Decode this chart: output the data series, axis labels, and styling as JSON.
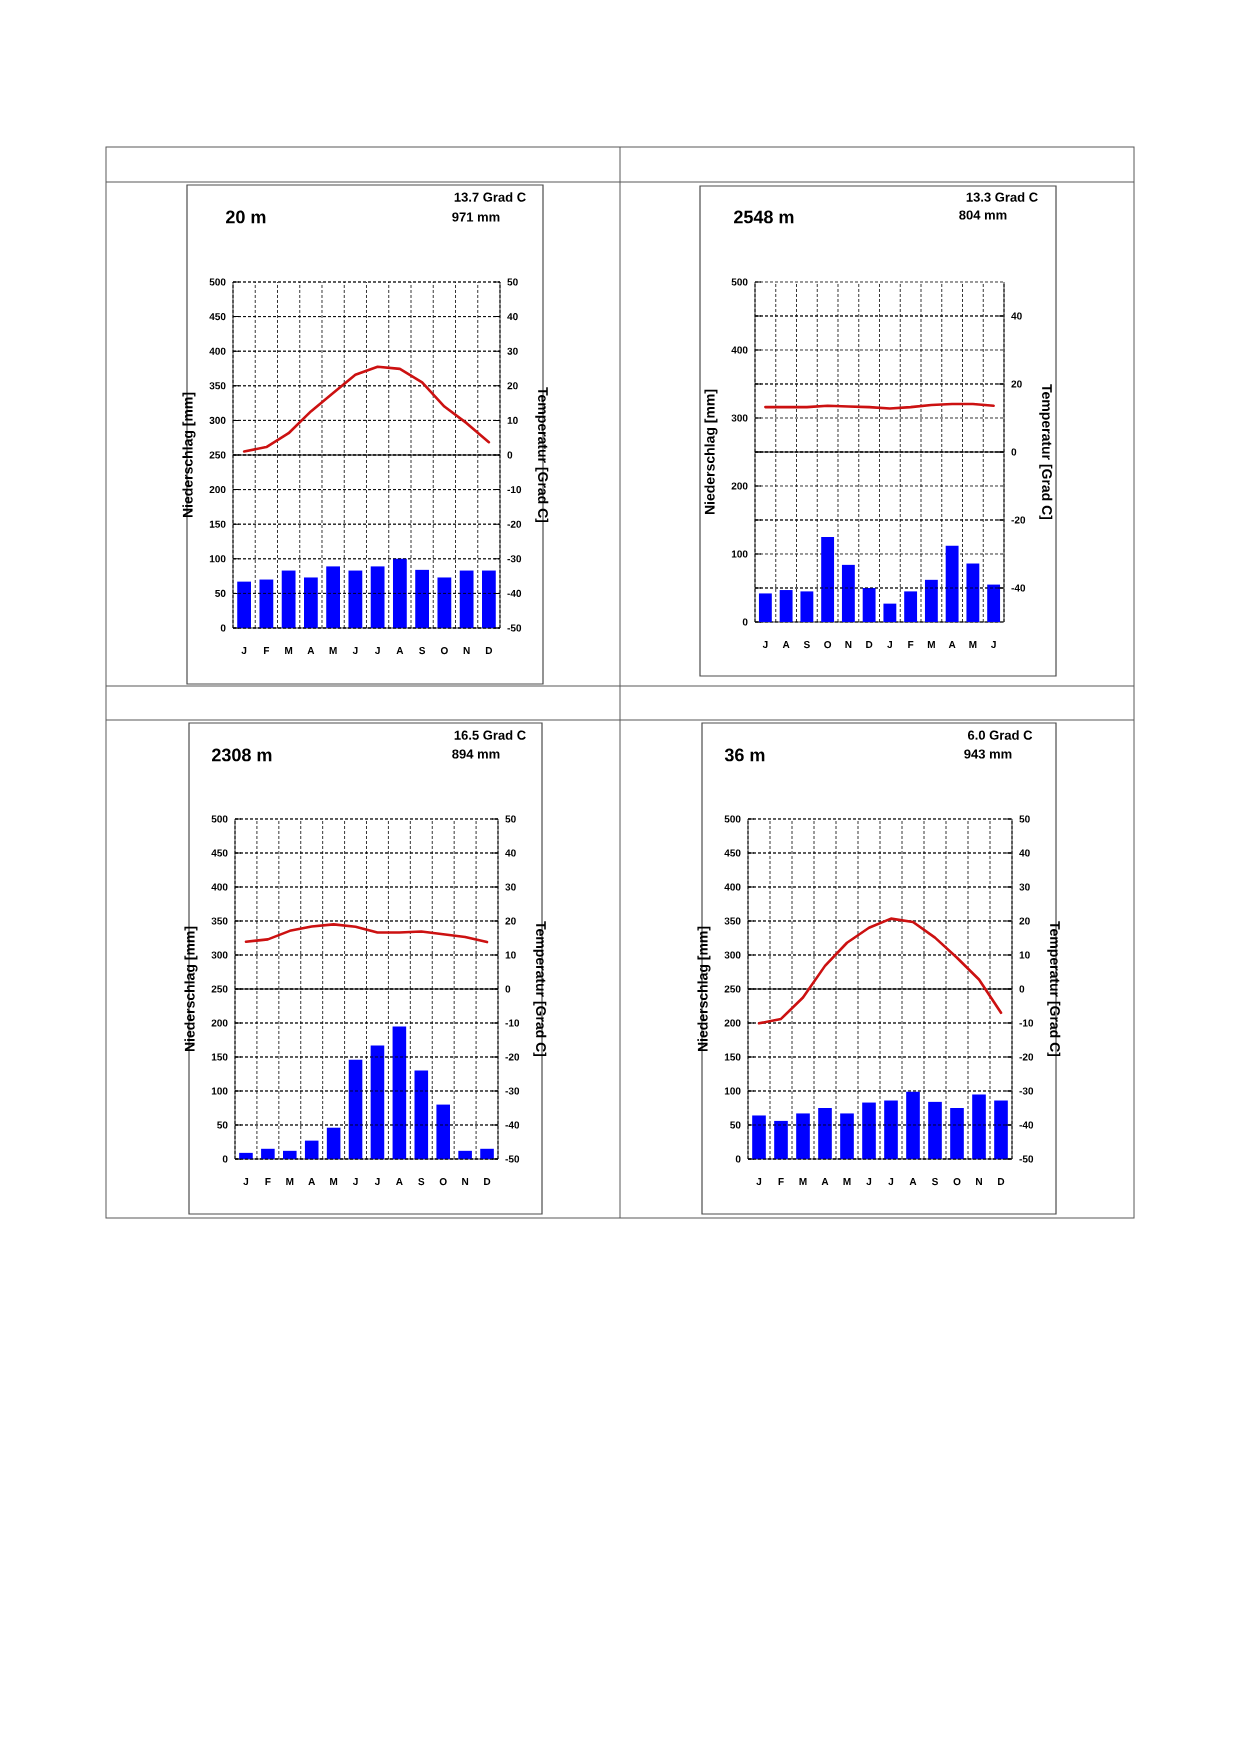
{
  "chart_data": [
    {
      "type": "bar",
      "title": "20 m",
      "annotations": [
        "13.7 Grad C",
        "971 mm"
      ],
      "ylabel": "Niederschlag [mm]",
      "y2label": "Temperatur [Grad C]",
      "categories": [
        "J",
        "F",
        "M",
        "A",
        "M",
        "J",
        "J",
        "A",
        "S",
        "O",
        "N",
        "D"
      ],
      "series": [
        {
          "color": "#0000ff",
          "values": [
            67,
            70,
            83,
            73,
            89,
            83,
            89,
            100,
            84,
            73,
            83,
            83
          ]
        },
        {
          "type": "line",
          "axis": "y2",
          "color": "#cc1111",
          "values": [
            1,
            2.3,
            6.3,
            12.6,
            17.9,
            23.2,
            25.5,
            24.9,
            21,
            14,
            9.2,
            3.7
          ]
        }
      ],
      "ylim": [
        0,
        500
      ],
      "yticks": [
        0,
        50,
        100,
        150,
        200,
        250,
        300,
        350,
        400,
        450,
        500
      ],
      "y2lim": [
        -50,
        50
      ],
      "y2ticks": [
        -50,
        -40,
        -30,
        -20,
        -10,
        0,
        10,
        20,
        30,
        40,
        50
      ],
      "grid": true,
      "ref_lines": [
        {
          "axis": "y2",
          "value": 0
        }
      ]
    },
    {
      "type": "bar",
      "title": "2548 m",
      "annotations": [
        "13.3 Grad C",
        "804 mm"
      ],
      "ylabel": "Niederschlag [mm]",
      "y2label": "Temperatur [Grad C]",
      "categories": [
        "J",
        "A",
        "S",
        "O",
        "N",
        "D",
        "J",
        "F",
        "M",
        "A",
        "M",
        "J"
      ],
      "series": [
        {
          "color": "#0000ff",
          "values": [
            42,
            47,
            45,
            125,
            84,
            50,
            27,
            45,
            62,
            112,
            86,
            55
          ]
        },
        {
          "type": "line",
          "axis": "y2",
          "color": "#cc1111",
          "values": [
            13.2,
            13.2,
            13.2,
            13.6,
            13.4,
            13.2,
            12.8,
            13.2,
            13.8,
            14.1,
            14.1,
            13.6
          ]
        }
      ],
      "ylim": [
        0,
        500
      ],
      "yticks": [
        0,
        {
          "value": 50,
          "label": null
        },
        100,
        {
          "value": 150,
          "label": null
        },
        200,
        {
          "value": 250,
          "label": null
        },
        300,
        {
          "value": 350,
          "label": null
        },
        400,
        {
          "value": 450,
          "label": null
        },
        500
      ],
      "y2lim": [
        -50,
        50
      ],
      "y2ticks": [
        -40,
        -20,
        0,
        20,
        40
      ],
      "grid": true,
      "ref_lines": [
        {
          "axis": "y2",
          "value": 0
        }
      ]
    },
    {
      "type": "bar",
      "title": "2308 m",
      "annotations": [
        "16.5 Grad C",
        "894 mm"
      ],
      "ylabel": "Niederschlag [mm]",
      "y2label": "Temperatur [Grad C]",
      "categories": [
        "J",
        "F",
        "M",
        "A",
        "M",
        "J",
        "J",
        "A",
        "S",
        "O",
        "N",
        "D"
      ],
      "series": [
        {
          "color": "#0000ff",
          "values": [
            9,
            15,
            12,
            27,
            46,
            146,
            167,
            195,
            130,
            80,
            12,
            15
          ]
        },
        {
          "type": "line",
          "axis": "y2",
          "color": "#cc1111",
          "values": [
            13.9,
            14.6,
            17.1,
            18.4,
            19,
            18.3,
            16.6,
            16.6,
            16.9,
            16.1,
            15.3,
            13.8
          ]
        }
      ],
      "ylim": [
        0,
        500
      ],
      "yticks": [
        0,
        50,
        100,
        150,
        200,
        250,
        300,
        350,
        400,
        450,
        500
      ],
      "y2lim": [
        -50,
        50
      ],
      "y2ticks": [
        -50,
        -40,
        -30,
        -20,
        -10,
        0,
        10,
        20,
        30,
        40,
        50
      ],
      "grid": true,
      "ref_lines": [
        {
          "axis": "y2",
          "value": 0
        }
      ]
    },
    {
      "type": "bar",
      "title": "36 m",
      "annotations": [
        "6.0 Grad C",
        "943 mm"
      ],
      "ylabel": "Niederschlag [mm]",
      "y2label": "Temperatur [Grad C]",
      "categories": [
        "J",
        "F",
        "M",
        "A",
        "M",
        "J",
        "J",
        "A",
        "S",
        "O",
        "N",
        "D"
      ],
      "series": [
        {
          "color": "#0000ff",
          "values": [
            64,
            56,
            67,
            75,
            67,
            83,
            86,
            99,
            84,
            75,
            95,
            86
          ]
        },
        {
          "type": "line",
          "axis": "y2",
          "color": "#cc1111",
          "values": [
            -10.1,
            -8.8,
            -2.5,
            6.8,
            13.6,
            18,
            20.7,
            19.7,
            15.1,
            9.2,
            2.8,
            -7
          ]
        }
      ],
      "ylim": [
        0,
        500
      ],
      "yticks": [
        0,
        50,
        100,
        150,
        200,
        250,
        300,
        350,
        400,
        450,
        500
      ],
      "y2lim": [
        -50,
        50
      ],
      "y2ticks": [
        -50,
        -40,
        -30,
        -20,
        -10,
        0,
        10,
        20,
        30,
        40,
        50
      ],
      "grid": true,
      "ref_lines": [
        {
          "axis": "y2",
          "value": 0
        }
      ]
    }
  ]
}
